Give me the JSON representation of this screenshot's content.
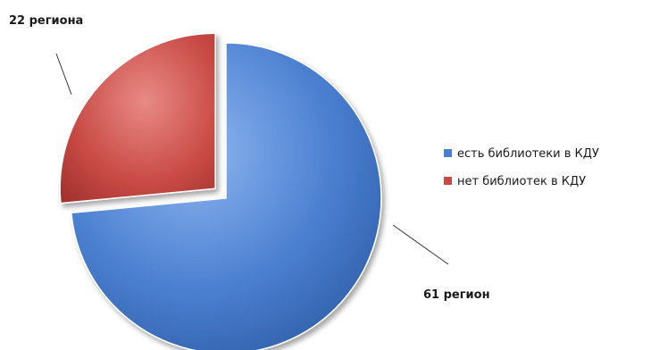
{
  "chart_data": {
    "type": "pie",
    "title": "",
    "exploded": true,
    "legend_position": "right",
    "slices": [
      {
        "name": "есть библиотеки в КДУ",
        "value": 61,
        "label": "61 регион",
        "color": "#4a7fd0"
      },
      {
        "name": "нет библиотек в КДУ",
        "value": 22,
        "label": "22 региона",
        "color": "#c94a45"
      }
    ]
  }
}
